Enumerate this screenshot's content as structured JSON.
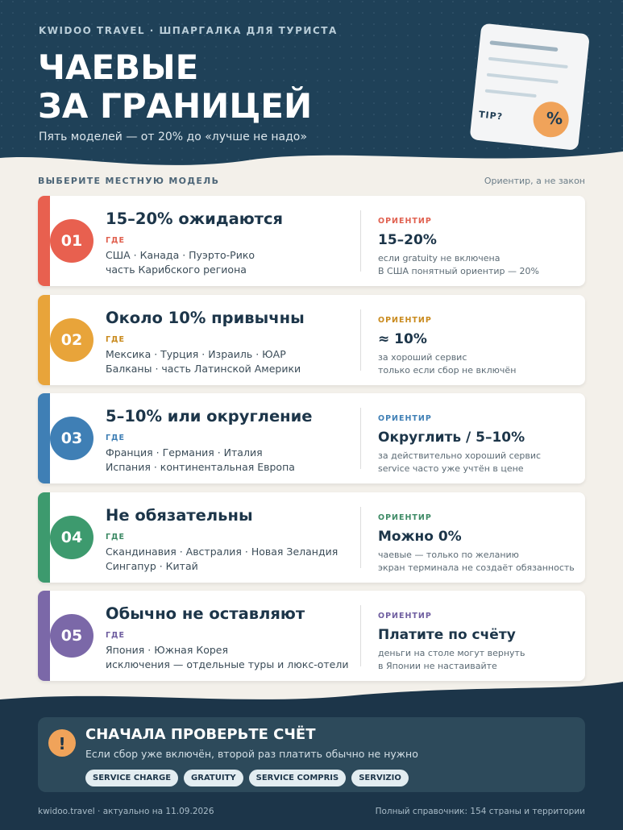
{
  "header": {
    "brand": "KWIDOO TRAVEL · ШПАРГАЛКА ДЛЯ ТУРИСТА",
    "title_lines": [
      "ЧАЕВЫЕ",
      "ЗА ГРАНИЦЕЙ"
    ],
    "subtitle": "Пять моделей — от 20% до «лучше не надо»",
    "illustration": {
      "label": "TIP?",
      "badge": "%"
    }
  },
  "section": {
    "label": "ВЫБЕРИТЕ МЕСТНУЮ МОДЕЛЬ",
    "note": "Ориентир, а не закон"
  },
  "cards": [
    {
      "number": "01",
      "title": "15–20% ожидаются",
      "where_label": "ГДЕ",
      "where": [
        "США · Канада · Пуэрто-Рико",
        "часть Карибского региона"
      ],
      "guide_label": "ОРИЕНТИР",
      "guide_value": "15–20%",
      "guide_notes": [
        "если gratuity не включена",
        "В США понятный ориентир — 20%"
      ]
    },
    {
      "number": "02",
      "title": "Около 10% привычны",
      "where_label": "ГДЕ",
      "where": [
        "Мексика · Турция · Израиль · ЮАР",
        "Балканы · часть Латинской Америки"
      ],
      "guide_label": "ОРИЕНТИР",
      "guide_value": "≈ 10%",
      "guide_notes": [
        "за хороший сервис",
        "только если сбор не включён"
      ]
    },
    {
      "number": "03",
      "title": "5–10% или округление",
      "where_label": "ГДЕ",
      "where": [
        "Франция · Германия · Италия",
        "Испания · континентальная Европа"
      ],
      "guide_label": "ОРИЕНТИР",
      "guide_value": "Округлить / 5–10%",
      "guide_notes": [
        "за действительно хороший сервис",
        "service часто уже учтён в цене"
      ]
    },
    {
      "number": "04",
      "title": "Не обязательны",
      "where_label": "ГДЕ",
      "where": [
        "Скандинавия · Австралия · Новая Зеландия",
        "Сингапур · Китай"
      ],
      "guide_label": "ОРИЕНТИР",
      "guide_value": "Можно 0%",
      "guide_notes": [
        "чаевые — только по желанию",
        "экран терминала не создаёт обязанность"
      ]
    },
    {
      "number": "05",
      "title": "Обычно не оставляют",
      "where_label": "ГДЕ",
      "where": [
        "Япония · Южная Корея",
        "исключения — отдельные туры и люкс-отели"
      ],
      "guide_label": "ОРИЕНТИР",
      "guide_value": "Платите по счёту",
      "guide_notes": [
        "деньги на столе могут вернуть",
        "в Японии не настаивайте"
      ]
    }
  ],
  "callout": {
    "icon": "!",
    "title": "СНАЧАЛА ПРОВЕРЬТЕ СЧЁТ",
    "text": "Если сбор уже включён, второй раз платить обычно не нужно",
    "tags": [
      "SERVICE CHARGE",
      "GRATUITY",
      "SERVICE COMPRIS",
      "SERVIZIO"
    ]
  },
  "footer": {
    "left": "kwidoo.travel · актуально на 11.09.2026",
    "right": "Полный справочник: 154 страны и территории"
  }
}
